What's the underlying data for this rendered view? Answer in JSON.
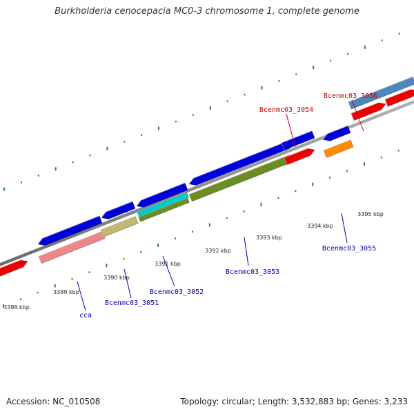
{
  "title": "Burkholderia cenocepacia MC0-3 chromosome 1, complete genome",
  "footer": {
    "accession": "Accession: NC_010508",
    "summary": "Topology: circular; Length: 3,532,883 bp; Genes: 3,233"
  },
  "ticks": [
    {
      "label": "3388 kbp"
    },
    {
      "label": "3389 kbp"
    },
    {
      "label": "3390 kbp"
    },
    {
      "label": "3391 kbp"
    },
    {
      "label": "3392 kbp"
    },
    {
      "label": "3393 kbp"
    },
    {
      "label": "3394 kbp"
    },
    {
      "label": "3395 kbp"
    }
  ],
  "genes": [
    {
      "name": "Bcenmc03_3054",
      "color": "#cc0000"
    },
    {
      "name": "Bcenmc03_3056",
      "color": "#cc0000"
    },
    {
      "name": "Bcenmc03_3055",
      "color": "#0000aa"
    },
    {
      "name": "Bcenmc03_3053",
      "color": "#0000aa"
    },
    {
      "name": "Bcenmc03_3052",
      "color": "#0000aa"
    },
    {
      "name": "Bcenmc03_3051",
      "color": "#0000aa"
    },
    {
      "name": "cca",
      "color": "#0000aa"
    }
  ],
  "colors": {
    "backbone": "#8a8a8a",
    "tick": "#2a8a2a",
    "cds_forward": "#0000dd",
    "cds_reverse": "#ee0000",
    "blue_steel": "#4f86bd",
    "pink": "#ee8888",
    "khaki": "#c2b870",
    "cyan": "#00cccc",
    "olive": "#6b8e23",
    "orange": "#ff8c00"
  }
}
